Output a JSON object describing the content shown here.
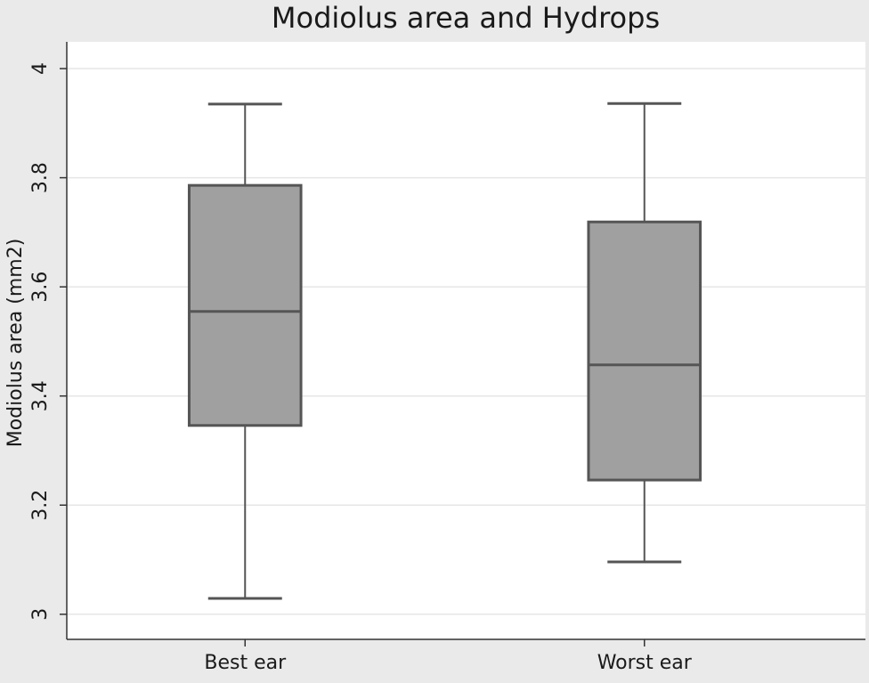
{
  "chart_data": {
    "type": "box",
    "title": "Modiolus area and Hydrops",
    "y_label": "Modiolus area (mm2)",
    "categories": [
      "Best ear",
      "Worst ear"
    ],
    "boxes": [
      {
        "whisker_low": 3.029,
        "q1": 3.346,
        "median": 3.555,
        "q3": 3.786,
        "whisker_high": 3.935
      },
      {
        "whisker_low": 3.096,
        "q1": 3.246,
        "median": 3.457,
        "q3": 3.719,
        "whisker_high": 3.936
      }
    ],
    "color": "#a0a0a0",
    "ylim": [
      2.954,
      4.049
    ],
    "yticks": [
      3,
      3.2,
      3.4,
      3.6,
      3.8,
      4
    ],
    "grid": true
  }
}
